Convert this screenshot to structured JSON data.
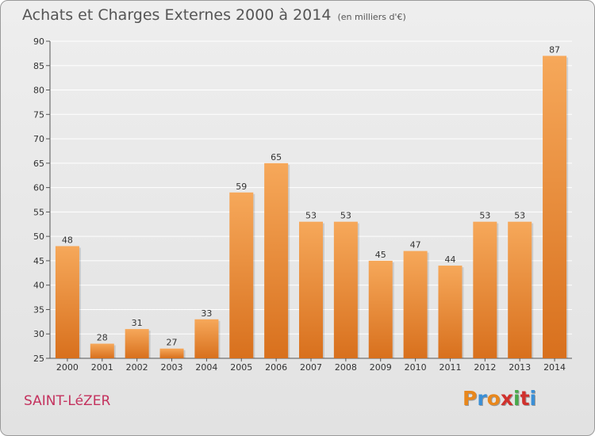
{
  "title": "Achats et Charges Externes 2000 à 2014",
  "unit_note": "(en milliers d'€)",
  "commune": "SAINT-LéZER",
  "logo": {
    "text": "Proxiti",
    "letters": [
      "P",
      "r",
      "o",
      "x",
      "i",
      "t",
      "i"
    ],
    "colors": [
      "#e8871c",
      "#3a8fd6",
      "#e8871c",
      "#d0312d",
      "#47a94a",
      "#d0312d",
      "#3a8fd6"
    ]
  },
  "colors": {
    "bar_top": "#f6a85a",
    "bar_bottom": "#d8701d",
    "grid": "#ffffff",
    "title": "#555555",
    "commune": "#c4325e"
  },
  "chart_data": {
    "type": "bar",
    "categories": [
      "2000",
      "2001",
      "2002",
      "2003",
      "2004",
      "2005",
      "2006",
      "2007",
      "2008",
      "2009",
      "2010",
      "2011",
      "2012",
      "2013",
      "2014"
    ],
    "values": [
      48,
      28,
      31,
      27,
      33,
      59,
      65,
      53,
      53,
      45,
      47,
      44,
      53,
      53,
      87
    ],
    "title": "Achats et Charges Externes 2000 à 2014",
    "subtitle": "(en milliers d'€)",
    "ylim": [
      25,
      90
    ],
    "yticks": [
      25,
      30,
      35,
      40,
      45,
      50,
      55,
      60,
      65,
      70,
      75,
      80,
      85,
      90
    ],
    "grid": true,
    "data_labels": true
  }
}
